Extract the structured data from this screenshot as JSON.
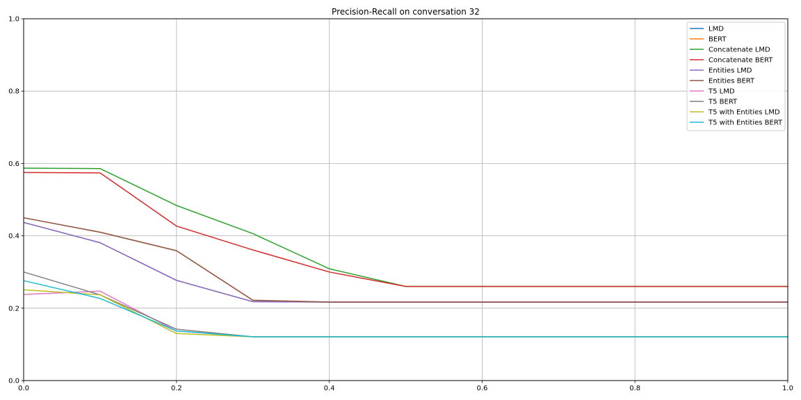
{
  "chart_data": {
    "type": "line",
    "title": "Precision-Recall on conversation 32",
    "xlabel": "",
    "ylabel": "",
    "xlim": [
      0,
      1
    ],
    "ylim": [
      0,
      1
    ],
    "xticks": [
      "0.0",
      "0.2",
      "0.4",
      "0.6",
      "0.8",
      "1.0"
    ],
    "yticks": [
      "0.0",
      "0.2",
      "0.4",
      "0.6",
      "0.8",
      "1.0"
    ],
    "grid": true,
    "legend_position": "top-right",
    "x": [
      0,
      0.1,
      0.2,
      0.3,
      0.4,
      0.5,
      0.6,
      0.7,
      0.8,
      0.9,
      1.0
    ],
    "series": [
      {
        "name": "LMD",
        "color": "#1f77b4",
        "values": [
          0.437,
          0.381,
          0.277,
          0.218,
          0.217,
          0.217,
          0.217,
          0.217,
          0.217,
          0.217,
          0.217
        ]
      },
      {
        "name": "BERT",
        "color": "#ff7f0e",
        "values": [
          0.45,
          0.41,
          0.359,
          0.222,
          0.217,
          0.217,
          0.217,
          0.217,
          0.217,
          0.217,
          0.217
        ]
      },
      {
        "name": "Concatenate LMD",
        "color": "#2ca02c",
        "values": [
          0.587,
          0.586,
          0.484,
          0.406,
          0.309,
          0.26,
          0.26,
          0.26,
          0.26,
          0.26,
          0.26
        ]
      },
      {
        "name": "Concatenate BERT",
        "color": "#d62728",
        "values": [
          0.575,
          0.574,
          0.427,
          0.361,
          0.3,
          0.26,
          0.26,
          0.26,
          0.26,
          0.26,
          0.26
        ]
      },
      {
        "name": "Entities LMD",
        "color": "#9467bd",
        "values": [
          0.437,
          0.381,
          0.277,
          0.218,
          0.217,
          0.217,
          0.217,
          0.217,
          0.217,
          0.217,
          0.217
        ]
      },
      {
        "name": "Entities BERT",
        "color": "#8c564b",
        "values": [
          0.45,
          0.41,
          0.359,
          0.222,
          0.217,
          0.217,
          0.217,
          0.217,
          0.217,
          0.217,
          0.217
        ]
      },
      {
        "name": "T5 LMD",
        "color": "#e377c2",
        "values": [
          0.238,
          0.247,
          0.137,
          0.121,
          0.121,
          0.121,
          0.121,
          0.121,
          0.121,
          0.121,
          0.121
        ]
      },
      {
        "name": "T5 BERT",
        "color": "#7f7f7f",
        "values": [
          0.3,
          0.237,
          0.142,
          0.121,
          0.121,
          0.121,
          0.121,
          0.121,
          0.121,
          0.121,
          0.121
        ]
      },
      {
        "name": "T5 with Entities LMD",
        "color": "#bcbd22",
        "values": [
          0.251,
          0.237,
          0.13,
          0.121,
          0.121,
          0.121,
          0.121,
          0.121,
          0.121,
          0.121,
          0.121
        ]
      },
      {
        "name": "T5 with Entities BERT",
        "color": "#17becf",
        "values": [
          0.276,
          0.227,
          0.137,
          0.121,
          0.121,
          0.121,
          0.121,
          0.121,
          0.121,
          0.121,
          0.121
        ]
      }
    ]
  }
}
